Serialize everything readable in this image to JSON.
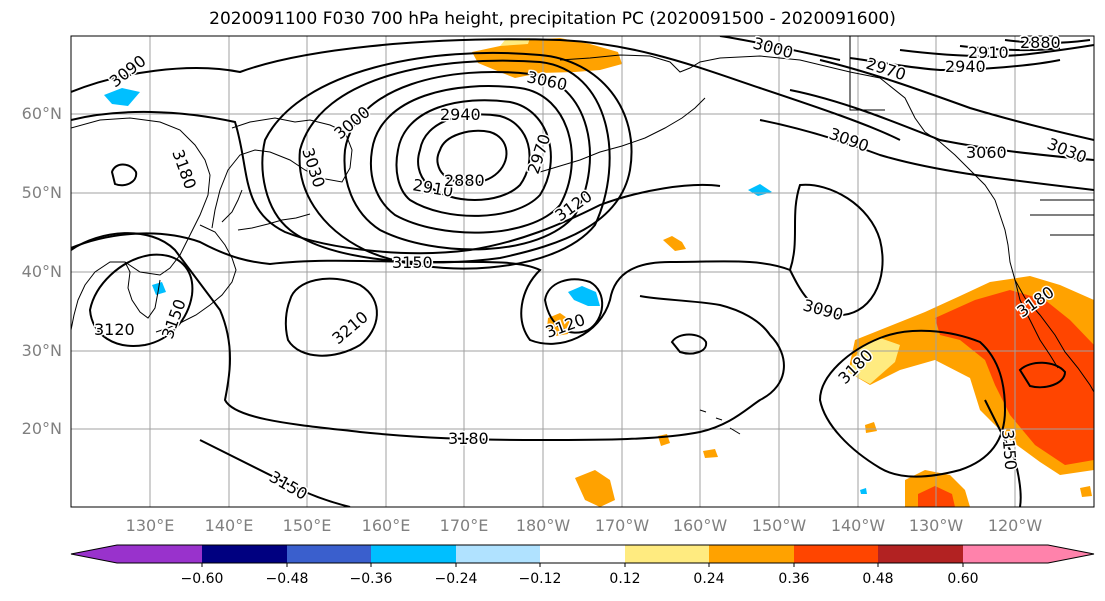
{
  "title": "2020091100 F030 700 hPa height, precipitation PC (2020091500 - 2020091600)",
  "map": {
    "lat_labels": [
      "60°N",
      "50°N",
      "40°N",
      "30°N",
      "20°N"
    ],
    "lon_labels": [
      "130°E",
      "140°E",
      "150°E",
      "160°E",
      "170°E",
      "180°W",
      "170°W",
      "160°W",
      "150°W",
      "140°W",
      "130°W",
      "120°W"
    ],
    "contour_labels": [
      "3090",
      "3180",
      "3000",
      "2940",
      "3030",
      "2910",
      "2880",
      "2970",
      "3060",
      "3000",
      "2970",
      "2940",
      "2910",
      "2880",
      "3090",
      "3060",
      "3030",
      "3120",
      "3150",
      "3210",
      "3120",
      "3090",
      "3180",
      "3180",
      "3180",
      "3150",
      "3150",
      "3120",
      "3150"
    ],
    "colors": {
      "contour": "#000000",
      "grid": "#a0a0a0",
      "coast": "#000000",
      "precip_low": "#ffeb80",
      "precip_mid": "#ffa200",
      "precip_high": "#ff4500",
      "negative_fill": "#00bfff"
    }
  },
  "colorbar": {
    "tick_labels": [
      "−0.60",
      "−0.48",
      "−0.36",
      "−0.24",
      "−0.12",
      "0.12",
      "0.24",
      "0.36",
      "0.48",
      "0.60"
    ],
    "colors": [
      "#9932cc",
      "#000080",
      "#3a5fcd",
      "#00bfff",
      "#b0e2ff",
      "#ffffff",
      "#ffeb80",
      "#ffa200",
      "#ff4500",
      "#b22222",
      "#ff82ab",
      "#ff82ab"
    ]
  }
}
